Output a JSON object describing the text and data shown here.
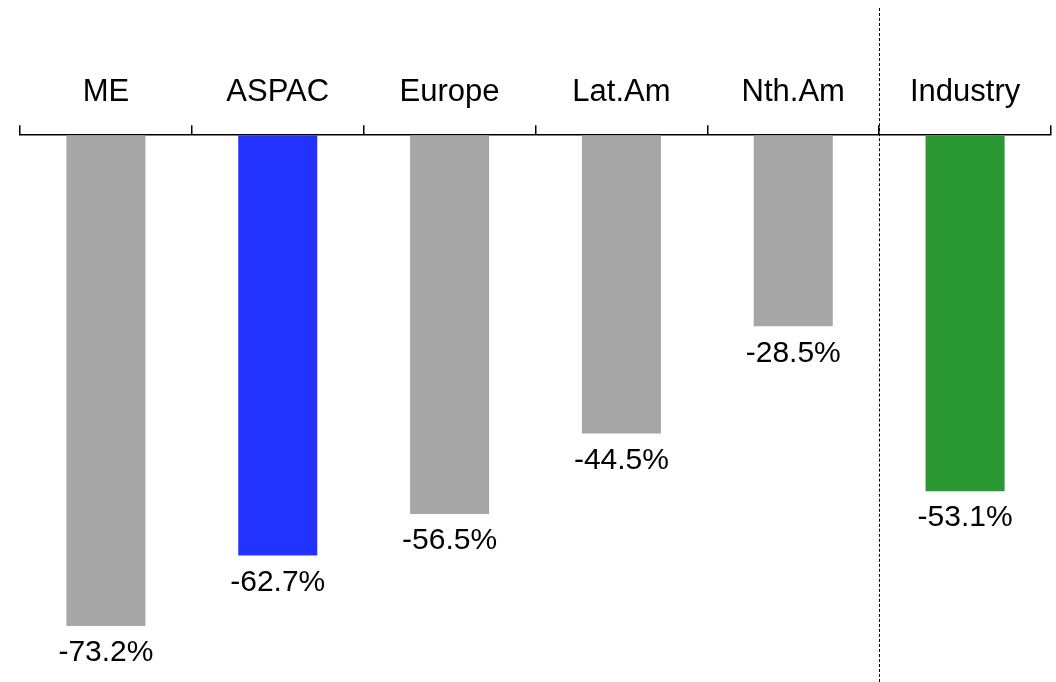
{
  "chart_data": {
    "type": "bar",
    "categories": [
      "ME",
      "ASPAC",
      "Europe",
      "Lat.Am",
      "Nth.Am",
      "Industry"
    ],
    "values": [
      -73.2,
      -62.7,
      -56.5,
      -44.5,
      -28.5,
      -53.1
    ],
    "colors": [
      "#a6a6a6",
      "#2233ff",
      "#a6a6a6",
      "#a6a6a6",
      "#a6a6a6",
      "#2a9934"
    ],
    "value_labels": [
      "-73.2%",
      "-62.7%",
      "-56.5%",
      "-44.5%",
      "-28.5%",
      "-53.1%"
    ]
  }
}
